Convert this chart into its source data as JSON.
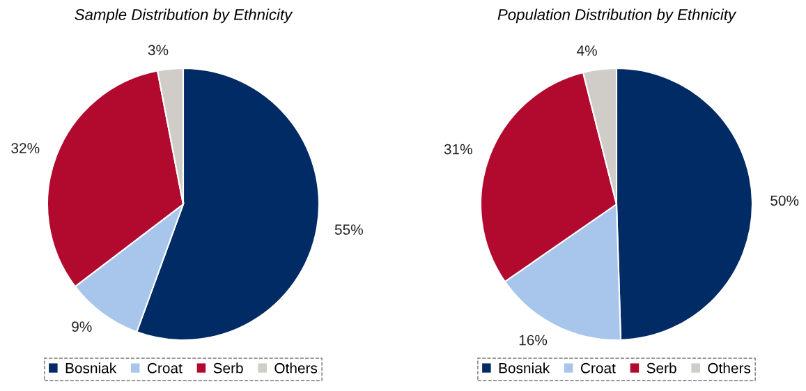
{
  "chart_data": [
    {
      "type": "pie",
      "title": "Sample Distribution by Ethnicity",
      "categories": [
        "Bosniak",
        "Croat",
        "Serb",
        "Others"
      ],
      "values": [
        55,
        9,
        32,
        3
      ],
      "value_labels": [
        "55%",
        "9%",
        "32%",
        "3%"
      ],
      "colors": [
        "#002b64",
        "#a8c6ec",
        "#b20a2e",
        "#d0cdc9"
      ],
      "legend": "bottom"
    },
    {
      "type": "pie",
      "title": "Population Distribution by Ethnicity",
      "categories": [
        "Bosniak",
        "Croat",
        "Serb",
        "Others"
      ],
      "values": [
        50,
        16,
        31,
        4
      ],
      "value_labels": [
        "50%",
        "16%",
        "31%",
        "4%"
      ],
      "colors": [
        "#002b64",
        "#a8c6ec",
        "#b20a2e",
        "#d0cdc9"
      ],
      "legend": "bottom"
    }
  ]
}
